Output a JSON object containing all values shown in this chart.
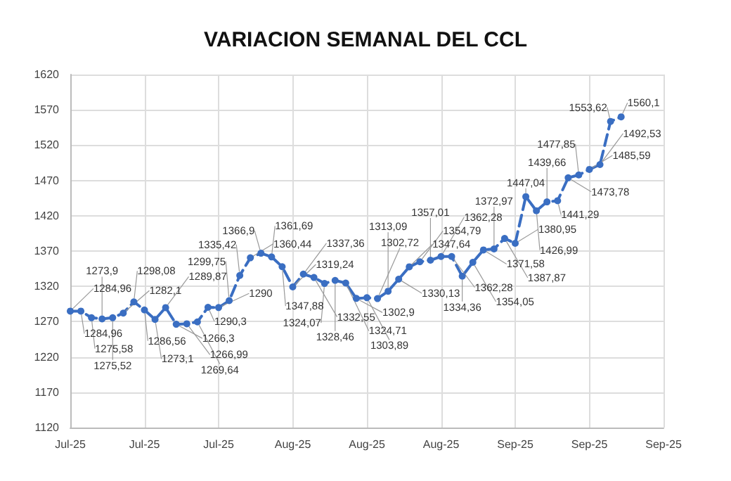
{
  "chart_data": {
    "type": "line",
    "title": "VARIACION SEMANAL DEL CCL",
    "categories": [
      "Jul-25",
      null,
      null,
      null,
      null,
      null,
      null,
      "Jul-25",
      null,
      null,
      null,
      null,
      null,
      null,
      "Jul-25",
      null,
      null,
      null,
      null,
      null,
      null,
      "Aug-25",
      null,
      null,
      null,
      null,
      null,
      null,
      "Aug-25",
      null,
      null,
      null,
      null,
      null,
      null,
      "Aug-25",
      null,
      null,
      null,
      null,
      null,
      null,
      "Sep-25",
      null,
      null,
      null,
      null,
      null,
      null,
      "Sep-25",
      null,
      null,
      null,
      null,
      null,
      null,
      "Sep-25"
    ],
    "series": [
      {
        "color": "#3a6ec2",
        "values": [
          1284.96,
          1284.96,
          1275.58,
          1273.9,
          1275.52,
          1282.1,
          1298.08,
          1286.56,
          1273.1,
          1289.87,
          1266.3,
          1266.99,
          1269.64,
          1290.3,
          1290,
          1299.75,
          1335.42,
          1360.44,
          1366.9,
          1361.69,
          1347.88,
          1319.24,
          1337.36,
          1332.55,
          1324.07,
          1328.46,
          1324.71,
          1302.9,
          1303.89,
          1302.72,
          1313.09,
          1330.13,
          1347.64,
          1354.79,
          1357.01,
          1362.28,
          1362.28,
          1334.36,
          1354.05,
          1371.58,
          1372.97,
          1387.87,
          1380.95,
          1447.04,
          1426.99,
          1439.66,
          1441.29,
          1473.78,
          1477.85,
          1485.59,
          1492.53,
          1553.62,
          1560.1,
          null,
          null,
          null,
          null
        ],
        "value_labels": [
          "1284,96",
          "1284,96",
          "1275,58",
          "1273,9",
          "1275,52",
          "1282,1",
          "1298,08",
          "1286,56",
          "1273,1",
          "1289,87",
          "1266,3",
          "1266,99",
          "1269,64",
          "1290,3",
          "1290",
          "1299,75",
          "1335,42",
          "1360,44",
          "1366,9",
          "1361,69",
          "1347,88",
          "1319,24",
          "1337,36",
          "1332,55",
          "1324,07",
          "1328,46",
          "1324,71",
          "1302,9",
          "1303,89",
          "1302,72",
          "1313,09",
          "1330,13",
          "1347,64",
          "1354,79",
          "1357,01",
          "1362,28",
          "1362,28",
          "1334,36",
          "1354,05",
          "1371,58",
          "1372,97",
          "1387,87",
          "1380,95",
          "1447,04",
          "1426,99",
          "1439,66",
          "1441,29",
          "1473,78",
          "1477,85",
          "1485,59",
          "1492,53",
          "1553,62",
          "1560,1",
          null,
          null,
          null,
          null
        ]
      }
    ],
    "ylim": [
      1120,
      1620
    ],
    "yticks": [
      1120,
      1170,
      1220,
      1270,
      1320,
      1370,
      1420,
      1470,
      1520,
      1570,
      1620
    ],
    "grid": true,
    "marker": "circle",
    "line_style": "dashed"
  }
}
